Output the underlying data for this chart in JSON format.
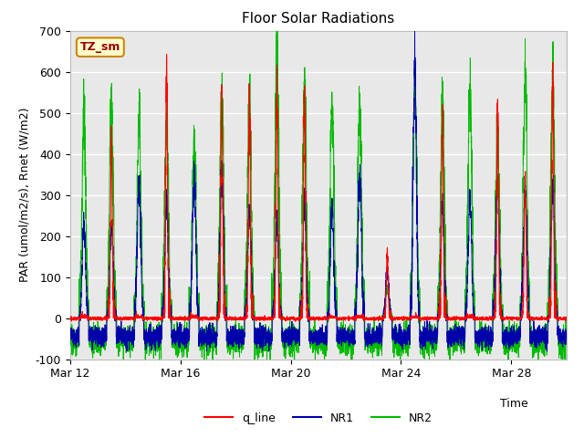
{
  "title": "Floor Solar Radiations",
  "xlabel": "Time",
  "ylabel": "PAR (umol/m2/s), Rnet (W/m2)",
  "ylim": [
    -100,
    700
  ],
  "yticks": [
    -100,
    0,
    100,
    200,
    300,
    400,
    500,
    600,
    700
  ],
  "xtick_labels": [
    "Mar 12",
    "Mar 16",
    "Mar 20",
    "Mar 24",
    "Mar 28"
  ],
  "xtick_positions": [
    0,
    4,
    8,
    12,
    16
  ],
  "legend_labels": [
    "q_line",
    "NR1",
    "NR2"
  ],
  "legend_colors": [
    "#ff0000",
    "#0000aa",
    "#00bb00"
  ],
  "annotation_text": "TZ_sm",
  "annotation_bg": "#ffffcc",
  "annotation_border": "#cc8800",
  "bg_color": "#e8e8e8",
  "line_colors": {
    "q_line": "#ff0000",
    "NR1": "#0000aa",
    "NR2": "#00bb00"
  },
  "days": 18,
  "num_points": 5000
}
